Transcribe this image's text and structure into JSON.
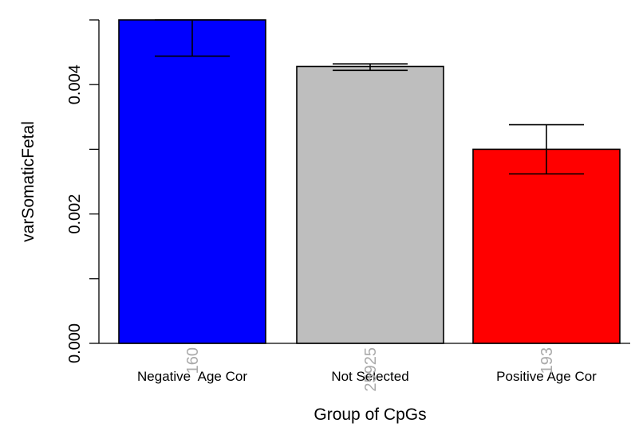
{
  "chart_data": {
    "type": "bar",
    "categories": [
      "Negative  Age Cor",
      "Not Selected",
      "Positive Age Cor"
    ],
    "values": [
      0.005,
      0.00428,
      0.003
    ],
    "error_low": [
      0.00444,
      0.00422,
      0.00262
    ],
    "error_high": [
      0.005,
      0.00432,
      0.00338
    ],
    "counts": [
      "160",
      "25925",
      "193"
    ],
    "colors": [
      "#0000ff",
      "#bebebe",
      "#ff0000"
    ],
    "xlabel": "Group of CpGs",
    "ylabel": "varSomaticFetal",
    "ylim": [
      0,
      0.005
    ],
    "yticks": [
      0,
      0.001,
      0.002,
      0.003,
      0.004,
      0.005
    ],
    "ytick_labels": [
      "0.000",
      "",
      "0.002",
      "",
      "0.004",
      ""
    ],
    "grid": false,
    "legend": "none"
  }
}
